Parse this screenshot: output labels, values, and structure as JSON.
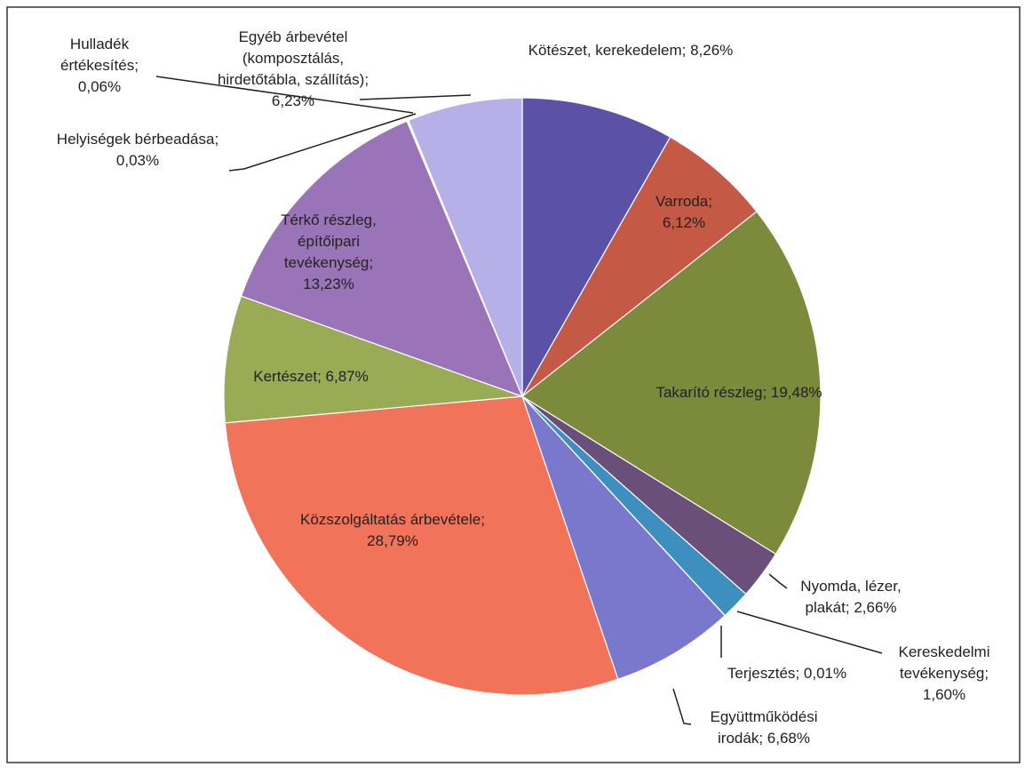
{
  "chart_data": {
    "type": "pie",
    "categories": [
      "Kötészet, kerekedelem",
      "Varroda",
      "Takarító részleg",
      "Nyomda, lézer, plakát",
      "Kereskedelmi tevékenység",
      "Terjesztés",
      "Együttműködési irodák",
      "Közszolgáltatás árbevétele",
      "Kertészet",
      "Térkő részleg, építőipari tevékenység",
      "Helyiségek bérbeadása",
      "Hulladék értékesítés",
      "Egyéb árbevétel (komposztálás, hirdetőtábla, szállítás)"
    ],
    "values": [
      8.26,
      6.12,
      19.48,
      2.66,
      1.6,
      0.01,
      6.68,
      28.79,
      6.87,
      13.23,
      0.03,
      0.06,
      6.23
    ],
    "value_labels": [
      "8,26%",
      "6,12%",
      "19,48%",
      "2,66%",
      "1,60%",
      "0,01%",
      "6,68%",
      "28,79%",
      "6,87%",
      "13,23%",
      "0,03%",
      "0,06%",
      "6,23%"
    ],
    "label_separator": "; ",
    "colors": [
      "#5b52a8",
      "#c45a46",
      "#7c8a3c",
      "#6a4f7a",
      "#3d8fc0",
      "#4a7fb8",
      "#7a78cc",
      "#f0735a",
      "#9aab55",
      "#9a74b8",
      "#b0a8e0",
      "#b3acd8",
      "#b6b0e8"
    ]
  }
}
